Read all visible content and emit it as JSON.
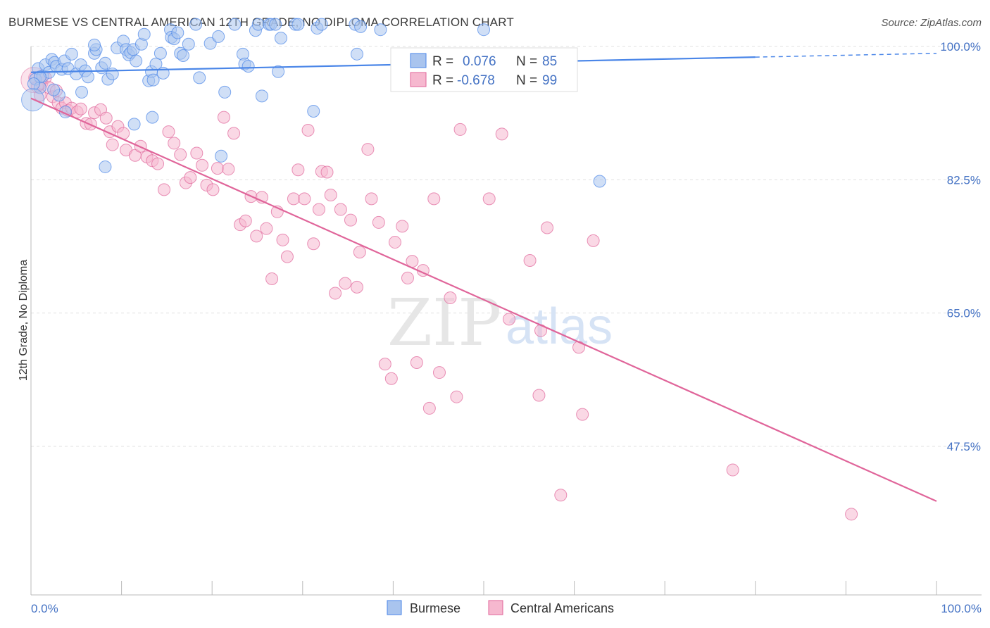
{
  "title": "BURMESE VS CENTRAL AMERICAN 12TH GRADE, NO DIPLOMA CORRELATION CHART",
  "source": "Source: ZipAtlas.com",
  "watermark": {
    "zip": "ZIP",
    "atlas": "atlas"
  },
  "colors": {
    "burmese": "#4a86e8",
    "burmese_fill": "#a9c4ee",
    "central": "#e0659a",
    "central_fill": "#f6b8cf",
    "tick": "#4472c4",
    "grid": "#e0e0e0"
  },
  "legend": {
    "rows": [
      {
        "r_label": "R = ",
        "r_value": "0.076",
        "n_label": "N = ",
        "n_value": "85"
      },
      {
        "r_label": "R = ",
        "r_value": "-0.678",
        "n_label": "N = ",
        "n_value": "99"
      }
    ]
  },
  "bottom_legend": {
    "burmese": "Burmese",
    "central": "Central Americans"
  },
  "chart_data": {
    "type": "scatter",
    "title": "BURMESE VS CENTRAL AMERICAN 12TH GRADE, NO DIPLOMA CORRELATION CHART",
    "xlabel": "",
    "ylabel": "12th Grade, No Diploma",
    "xlim": [
      0,
      100
    ],
    "ylim": [
      28,
      100
    ],
    "x_tick_labels": [
      "0.0%",
      "100.0%"
    ],
    "y_ticks": [
      100,
      82.5,
      65,
      47.5
    ],
    "y_tick_labels": [
      "100.0%",
      "82.5%",
      "65.0%",
      "47.5%"
    ],
    "grid": true,
    "legend_position": "top-center",
    "series": [
      {
        "name": "Burmese",
        "r": 0.076,
        "n": 85,
        "trend": {
          "x0": 0,
          "y0": 96.6,
          "x1": 80,
          "y1": 98.6,
          "dashed_to_x": 100,
          "dashed_to_y": 99.1
        },
        "points": [
          [
            0.5,
            95.7
          ],
          [
            0.8,
            97.1
          ],
          [
            1.0,
            94.6
          ],
          [
            1.3,
            96.1
          ],
          [
            1.6,
            97.6
          ],
          [
            2.0,
            96.6
          ],
          [
            2.3,
            98.3
          ],
          [
            2.6,
            97.9
          ],
          [
            2.8,
            97.4
          ],
          [
            3.1,
            93.6
          ],
          [
            3.4,
            97.0
          ],
          [
            3.7,
            98.1
          ],
          [
            4.1,
            97.1
          ],
          [
            4.5,
            99.0
          ],
          [
            5.0,
            96.4
          ],
          [
            5.5,
            97.6
          ],
          [
            6.0,
            96.8
          ],
          [
            6.3,
            96.0
          ],
          [
            7.0,
            99.1
          ],
          [
            7.2,
            99.6
          ],
          [
            7.8,
            97.2
          ],
          [
            8.2,
            97.8
          ],
          [
            8.5,
            95.7
          ],
          [
            9.0,
            96.4
          ],
          [
            9.5,
            99.8
          ],
          [
            10.2,
            100.7
          ],
          [
            10.5,
            99.6
          ],
          [
            10.8,
            98.9
          ],
          [
            11.0,
            99.2
          ],
          [
            11.3,
            99.6
          ],
          [
            11.6,
            98.1
          ],
          [
            12.2,
            100.3
          ],
          [
            12.5,
            101.6
          ],
          [
            13.0,
            95.5
          ],
          [
            13.3,
            96.7
          ],
          [
            13.5,
            95.6
          ],
          [
            13.8,
            97.7
          ],
          [
            14.3,
            99.1
          ],
          [
            14.6,
            96.5
          ],
          [
            15.4,
            102.2
          ],
          [
            15.5,
            101.2
          ],
          [
            15.8,
            101.0
          ],
          [
            16.2,
            101.8
          ],
          [
            16.5,
            99.1
          ],
          [
            16.8,
            98.8
          ],
          [
            17.4,
            100.3
          ],
          [
            18.2,
            102.9
          ],
          [
            18.6,
            95.9
          ],
          [
            19.8,
            100.4
          ],
          [
            20.7,
            101.3
          ],
          [
            21.4,
            94.0
          ],
          [
            22.5,
            102.9
          ],
          [
            23.4,
            99.0
          ],
          [
            23.6,
            97.7
          ],
          [
            24.0,
            97.4
          ],
          [
            24.8,
            102.1
          ],
          [
            25.1,
            102.9
          ],
          [
            25.5,
            93.5
          ],
          [
            26.3,
            102.9
          ],
          [
            26.5,
            102.9
          ],
          [
            27.0,
            102.9
          ],
          [
            27.3,
            96.7
          ],
          [
            27.6,
            101.1
          ],
          [
            29.2,
            102.9
          ],
          [
            29.5,
            102.9
          ],
          [
            31.2,
            91.5
          ],
          [
            31.6,
            102.4
          ],
          [
            32.1,
            102.9
          ],
          [
            35.8,
            102.9
          ],
          [
            36.0,
            99.0
          ],
          [
            36.4,
            102.6
          ],
          [
            38.6,
            102.2
          ],
          [
            50.0,
            102.2
          ],
          [
            54.5,
            95.5
          ],
          [
            62.8,
            82.3
          ],
          [
            1.0,
            96.0
          ],
          [
            2.5,
            94.3
          ],
          [
            5.6,
            94.0
          ],
          [
            3.8,
            91.4
          ],
          [
            8.2,
            84.2
          ],
          [
            11.4,
            89.8
          ],
          [
            13.4,
            90.7
          ],
          [
            21.0,
            85.6
          ],
          [
            0.3,
            95.1
          ],
          [
            7.0,
            100.2
          ]
        ]
      },
      {
        "name": "Central Americans",
        "r": -0.678,
        "n": 99,
        "trend": {
          "x0": 0,
          "y0": 93.2,
          "x1": 100,
          "y1": 40.3
        },
        "points": [
          [
            0.4,
            95.9
          ],
          [
            0.7,
            94.7
          ],
          [
            1.0,
            93.6
          ],
          [
            1.2,
            95.2
          ],
          [
            1.6,
            95.9
          ],
          [
            2.0,
            94.6
          ],
          [
            2.4,
            93.4
          ],
          [
            2.8,
            94.2
          ],
          [
            3.0,
            92.6
          ],
          [
            3.4,
            91.9
          ],
          [
            3.8,
            92.6
          ],
          [
            4.1,
            91.6
          ],
          [
            4.5,
            91.9
          ],
          [
            5.1,
            91.4
          ],
          [
            5.5,
            91.8
          ],
          [
            6.1,
            89.9
          ],
          [
            6.6,
            89.8
          ],
          [
            7.0,
            91.3
          ],
          [
            7.7,
            91.7
          ],
          [
            8.3,
            90.6
          ],
          [
            8.7,
            88.8
          ],
          [
            9.0,
            87.1
          ],
          [
            9.6,
            89.5
          ],
          [
            10.2,
            88.6
          ],
          [
            10.5,
            86.4
          ],
          [
            11.5,
            85.7
          ],
          [
            12.1,
            86.9
          ],
          [
            12.8,
            85.5
          ],
          [
            13.4,
            85.0
          ],
          [
            14.0,
            84.6
          ],
          [
            14.7,
            81.2
          ],
          [
            15.2,
            88.8
          ],
          [
            15.8,
            87.3
          ],
          [
            16.5,
            85.8
          ],
          [
            17.1,
            82.1
          ],
          [
            17.6,
            82.8
          ],
          [
            18.3,
            86.0
          ],
          [
            18.9,
            84.4
          ],
          [
            19.4,
            81.8
          ],
          [
            20.1,
            81.2
          ],
          [
            20.6,
            84.0
          ],
          [
            21.3,
            90.7
          ],
          [
            21.8,
            83.9
          ],
          [
            22.4,
            88.6
          ],
          [
            23.1,
            76.6
          ],
          [
            23.7,
            77.1
          ],
          [
            24.3,
            80.3
          ],
          [
            24.9,
            75.1
          ],
          [
            25.5,
            80.2
          ],
          [
            26.0,
            76.1
          ],
          [
            26.6,
            69.5
          ],
          [
            27.2,
            78.3
          ],
          [
            27.8,
            74.6
          ],
          [
            28.3,
            72.4
          ],
          [
            29.0,
            80.0
          ],
          [
            29.5,
            83.8
          ],
          [
            30.2,
            80.0
          ],
          [
            30.6,
            89.0
          ],
          [
            31.2,
            74.1
          ],
          [
            31.8,
            78.6
          ],
          [
            32.1,
            83.6
          ],
          [
            32.7,
            83.5
          ],
          [
            33.1,
            80.5
          ],
          [
            33.6,
            67.6
          ],
          [
            34.2,
            78.6
          ],
          [
            34.7,
            68.9
          ],
          [
            35.3,
            77.2
          ],
          [
            36.0,
            68.4
          ],
          [
            36.3,
            73.0
          ],
          [
            37.2,
            86.5
          ],
          [
            37.6,
            80.0
          ],
          [
            38.4,
            76.9
          ],
          [
            39.1,
            58.3
          ],
          [
            39.8,
            56.4
          ],
          [
            40.2,
            74.3
          ],
          [
            41.0,
            76.4
          ],
          [
            41.6,
            69.6
          ],
          [
            42.1,
            71.8
          ],
          [
            42.6,
            58.5
          ],
          [
            43.3,
            70.6
          ],
          [
            44.0,
            52.5
          ],
          [
            44.5,
            80.0
          ],
          [
            45.1,
            57.2
          ],
          [
            46.3,
            67.0
          ],
          [
            47.0,
            54.0
          ],
          [
            47.4,
            89.1
          ],
          [
            50.6,
            80.0
          ],
          [
            52.0,
            88.5
          ],
          [
            52.8,
            64.2
          ],
          [
            55.1,
            71.9
          ],
          [
            56.3,
            62.7
          ],
          [
            57.0,
            76.2
          ],
          [
            58.5,
            41.1
          ],
          [
            60.5,
            60.5
          ],
          [
            60.9,
            51.7
          ],
          [
            62.1,
            74.5
          ],
          [
            77.5,
            44.4
          ],
          [
            90.6,
            38.6
          ],
          [
            56.1,
            54.2
          ]
        ]
      }
    ]
  }
}
